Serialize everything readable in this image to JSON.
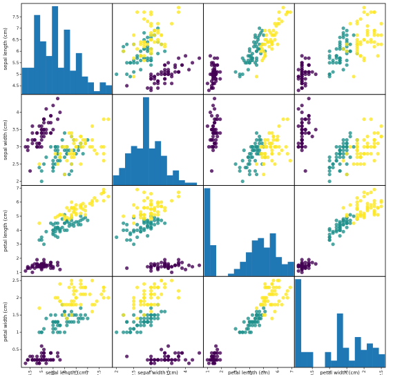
{
  "chart_data": {
    "type": "scatter_matrix",
    "variables": [
      "sepal length (cm)",
      "sepal width (cm)",
      "petal length (cm)",
      "petal width (cm)"
    ],
    "axis_ranges": [
      [
        4.3,
        7.9
      ],
      [
        2.0,
        4.4
      ],
      [
        1.0,
        6.9
      ],
      [
        0.1,
        2.5
      ]
    ],
    "ticks": [
      [
        4.5,
        5.0,
        5.5,
        6.0,
        6.5,
        7.0,
        7.5
      ],
      [
        2.0,
        2.5,
        3.0,
        3.5,
        4.0
      ],
      [
        1,
        2,
        3,
        4,
        5,
        6,
        7
      ],
      [
        0.5,
        1.0,
        1.5,
        2.0,
        2.5
      ]
    ],
    "diagonal_hist_counts": [
      [
        9,
        9,
        27,
        18,
        13,
        30,
        9,
        22,
        8,
        14,
        6,
        4,
        1,
        4,
        3
      ],
      [
        4,
        7,
        13,
        16,
        15,
        36,
        15,
        18,
        12,
        4,
        6,
        2,
        1,
        1,
        0
      ],
      [
        37,
        13,
        0,
        0,
        1,
        3,
        6,
        10,
        15,
        16,
        12,
        18,
        8,
        5,
        6
      ],
      [
        41,
        7,
        7,
        0,
        0,
        7,
        3,
        25,
        9,
        3,
        14,
        8,
        11,
        9,
        6
      ]
    ],
    "hist_bins": 15,
    "class_colors": [
      "#440154",
      "#21918c",
      "#fde725"
    ],
    "grid": false,
    "legend": "none",
    "samples": [
      [
        5.1,
        3.5,
        1.4,
        0.2,
        0
      ],
      [
        4.9,
        3.0,
        1.4,
        0.2,
        0
      ],
      [
        4.7,
        3.2,
        1.3,
        0.2,
        0
      ],
      [
        4.6,
        3.1,
        1.5,
        0.2,
        0
      ],
      [
        5.0,
        3.6,
        1.4,
        0.2,
        0
      ],
      [
        5.4,
        3.9,
        1.7,
        0.4,
        0
      ],
      [
        4.6,
        3.4,
        1.4,
        0.3,
        0
      ],
      [
        5.0,
        3.4,
        1.5,
        0.2,
        0
      ],
      [
        4.4,
        2.9,
        1.4,
        0.2,
        0
      ],
      [
        4.9,
        3.1,
        1.5,
        0.1,
        0
      ],
      [
        5.4,
        3.7,
        1.5,
        0.2,
        0
      ],
      [
        4.8,
        3.4,
        1.6,
        0.2,
        0
      ],
      [
        4.8,
        3.0,
        1.4,
        0.1,
        0
      ],
      [
        4.3,
        3.0,
        1.1,
        0.1,
        0
      ],
      [
        5.8,
        4.0,
        1.2,
        0.2,
        0
      ],
      [
        5.7,
        4.4,
        1.5,
        0.4,
        0
      ],
      [
        5.4,
        3.9,
        1.3,
        0.4,
        0
      ],
      [
        5.1,
        3.5,
        1.4,
        0.3,
        0
      ],
      [
        5.7,
        3.8,
        1.7,
        0.3,
        0
      ],
      [
        5.1,
        3.8,
        1.5,
        0.3,
        0
      ],
      [
        5.4,
        3.4,
        1.7,
        0.2,
        0
      ],
      [
        5.1,
        3.7,
        1.5,
        0.4,
        0
      ],
      [
        4.6,
        3.6,
        1.0,
        0.2,
        0
      ],
      [
        5.1,
        3.3,
        1.7,
        0.5,
        0
      ],
      [
        4.8,
        3.4,
        1.9,
        0.2,
        0
      ],
      [
        5.0,
        3.0,
        1.6,
        0.2,
        0
      ],
      [
        5.0,
        3.4,
        1.6,
        0.4,
        0
      ],
      [
        5.2,
        3.5,
        1.5,
        0.2,
        0
      ],
      [
        5.2,
        3.4,
        1.4,
        0.2,
        0
      ],
      [
        4.7,
        3.2,
        1.6,
        0.2,
        0
      ],
      [
        4.8,
        3.1,
        1.6,
        0.2,
        0
      ],
      [
        5.4,
        3.4,
        1.5,
        0.4,
        0
      ],
      [
        5.2,
        4.1,
        1.5,
        0.1,
        0
      ],
      [
        5.5,
        4.2,
        1.4,
        0.2,
        0
      ],
      [
        4.9,
        3.1,
        1.5,
        0.2,
        0
      ],
      [
        5.0,
        3.2,
        1.2,
        0.2,
        0
      ],
      [
        5.5,
        3.5,
        1.3,
        0.2,
        0
      ],
      [
        4.9,
        3.6,
        1.4,
        0.1,
        0
      ],
      [
        4.4,
        3.0,
        1.3,
        0.2,
        0
      ],
      [
        5.1,
        3.4,
        1.5,
        0.2,
        0
      ],
      [
        5.0,
        3.5,
        1.3,
        0.3,
        0
      ],
      [
        4.5,
        2.3,
        1.3,
        0.3,
        0
      ],
      [
        4.4,
        3.2,
        1.3,
        0.2,
        0
      ],
      [
        5.0,
        3.5,
        1.6,
        0.6,
        0
      ],
      [
        5.1,
        3.8,
        1.9,
        0.4,
        0
      ],
      [
        4.8,
        3.0,
        1.4,
        0.3,
        0
      ],
      [
        5.1,
        3.8,
        1.6,
        0.2,
        0
      ],
      [
        4.6,
        3.2,
        1.4,
        0.2,
        0
      ],
      [
        5.3,
        3.7,
        1.5,
        0.2,
        0
      ],
      [
        5.0,
        3.3,
        1.4,
        0.2,
        0
      ],
      [
        7.0,
        3.2,
        4.7,
        1.4,
        1
      ],
      [
        6.4,
        3.2,
        4.5,
        1.5,
        1
      ],
      [
        6.9,
        3.1,
        4.9,
        1.5,
        1
      ],
      [
        5.5,
        2.3,
        4.0,
        1.3,
        1
      ],
      [
        6.5,
        2.8,
        4.6,
        1.5,
        1
      ],
      [
        5.7,
        2.8,
        4.5,
        1.3,
        1
      ],
      [
        6.3,
        3.3,
        4.7,
        1.6,
        1
      ],
      [
        4.9,
        2.4,
        3.3,
        1.0,
        1
      ],
      [
        6.6,
        2.9,
        4.6,
        1.3,
        1
      ],
      [
        5.2,
        2.7,
        3.9,
        1.4,
        1
      ],
      [
        5.0,
        2.0,
        3.5,
        1.0,
        1
      ],
      [
        5.9,
        3.0,
        4.2,
        1.5,
        1
      ],
      [
        6.0,
        2.2,
        4.0,
        1.0,
        1
      ],
      [
        6.1,
        2.9,
        4.7,
        1.4,
        1
      ],
      [
        5.6,
        2.9,
        3.6,
        1.3,
        1
      ],
      [
        6.7,
        3.1,
        4.4,
        1.4,
        1
      ],
      [
        5.6,
        3.0,
        4.5,
        1.5,
        1
      ],
      [
        5.8,
        2.7,
        4.1,
        1.0,
        1
      ],
      [
        6.2,
        2.2,
        4.5,
        1.5,
        1
      ],
      [
        5.6,
        2.5,
        3.9,
        1.1,
        1
      ],
      [
        5.9,
        3.2,
        4.8,
        1.8,
        1
      ],
      [
        6.1,
        2.8,
        4.0,
        1.3,
        1
      ],
      [
        6.3,
        2.5,
        4.9,
        1.5,
        1
      ],
      [
        6.1,
        2.8,
        4.7,
        1.2,
        1
      ],
      [
        6.4,
        2.9,
        4.3,
        1.3,
        1
      ],
      [
        6.6,
        3.0,
        4.4,
        1.4,
        1
      ],
      [
        6.8,
        2.8,
        4.8,
        1.4,
        1
      ],
      [
        6.7,
        3.0,
        5.0,
        1.7,
        1
      ],
      [
        6.0,
        2.9,
        4.5,
        1.5,
        1
      ],
      [
        5.7,
        2.6,
        3.5,
        1.0,
        1
      ],
      [
        5.5,
        2.4,
        3.8,
        1.1,
        1
      ],
      [
        5.5,
        2.4,
        3.7,
        1.0,
        1
      ],
      [
        5.8,
        2.7,
        3.9,
        1.2,
        1
      ],
      [
        6.0,
        2.7,
        5.1,
        1.6,
        1
      ],
      [
        5.4,
        3.0,
        4.5,
        1.5,
        1
      ],
      [
        6.0,
        3.4,
        4.5,
        1.6,
        1
      ],
      [
        6.7,
        3.1,
        4.7,
        1.5,
        1
      ],
      [
        6.3,
        2.3,
        4.4,
        1.3,
        1
      ],
      [
        5.6,
        3.0,
        4.1,
        1.3,
        1
      ],
      [
        5.5,
        2.5,
        4.0,
        1.3,
        1
      ],
      [
        5.5,
        2.6,
        4.4,
        1.2,
        1
      ],
      [
        6.1,
        3.0,
        4.6,
        1.4,
        1
      ],
      [
        5.8,
        2.6,
        4.0,
        1.2,
        1
      ],
      [
        5.0,
        2.3,
        3.3,
        1.0,
        1
      ],
      [
        5.6,
        2.7,
        4.2,
        1.3,
        1
      ],
      [
        5.7,
        3.0,
        4.2,
        1.2,
        1
      ],
      [
        5.7,
        2.9,
        4.2,
        1.3,
        1
      ],
      [
        6.2,
        2.9,
        4.3,
        1.3,
        1
      ],
      [
        5.1,
        2.5,
        3.0,
        1.1,
        1
      ],
      [
        5.7,
        2.8,
        4.1,
        1.3,
        1
      ],
      [
        6.3,
        3.3,
        6.0,
        2.5,
        2
      ],
      [
        5.8,
        2.7,
        5.1,
        1.9,
        2
      ],
      [
        7.1,
        3.0,
        5.9,
        2.1,
        2
      ],
      [
        6.3,
        2.9,
        5.6,
        1.8,
        2
      ],
      [
        6.5,
        3.0,
        5.8,
        2.2,
        2
      ],
      [
        7.6,
        3.0,
        6.6,
        2.1,
        2
      ],
      [
        4.9,
        2.5,
        4.5,
        1.7,
        2
      ],
      [
        7.3,
        2.9,
        6.3,
        1.8,
        2
      ],
      [
        6.7,
        2.5,
        5.8,
        1.8,
        2
      ],
      [
        7.2,
        3.6,
        6.1,
        2.5,
        2
      ],
      [
        6.5,
        3.2,
        5.1,
        2.0,
        2
      ],
      [
        6.4,
        2.7,
        5.3,
        1.9,
        2
      ],
      [
        6.8,
        3.0,
        5.5,
        2.1,
        2
      ],
      [
        5.7,
        2.5,
        5.0,
        2.0,
        2
      ],
      [
        5.8,
        2.8,
        5.1,
        2.4,
        2
      ],
      [
        6.4,
        3.2,
        5.3,
        2.3,
        2
      ],
      [
        6.5,
        3.0,
        5.5,
        1.8,
        2
      ],
      [
        7.7,
        3.8,
        6.7,
        2.2,
        2
      ],
      [
        7.7,
        2.6,
        6.9,
        2.3,
        2
      ],
      [
        6.0,
        2.2,
        5.0,
        1.5,
        2
      ],
      [
        6.9,
        3.2,
        5.7,
        2.3,
        2
      ],
      [
        5.6,
        2.8,
        4.9,
        2.0,
        2
      ],
      [
        7.7,
        2.8,
        6.7,
        2.0,
        2
      ],
      [
        6.3,
        2.7,
        4.9,
        1.8,
        2
      ],
      [
        6.7,
        3.3,
        5.7,
        2.1,
        2
      ],
      [
        7.2,
        3.2,
        6.0,
        1.8,
        2
      ],
      [
        6.2,
        2.8,
        4.8,
        1.8,
        2
      ],
      [
        6.1,
        3.0,
        4.9,
        1.8,
        2
      ],
      [
        6.4,
        2.8,
        5.6,
        2.1,
        2
      ],
      [
        7.2,
        3.0,
        5.8,
        1.6,
        2
      ],
      [
        7.4,
        2.8,
        6.1,
        1.9,
        2
      ],
      [
        7.9,
        3.8,
        6.4,
        2.0,
        2
      ],
      [
        6.4,
        2.8,
        5.6,
        2.2,
        2
      ],
      [
        6.3,
        2.8,
        5.1,
        1.5,
        2
      ],
      [
        6.1,
        2.6,
        5.6,
        1.4,
        2
      ],
      [
        7.7,
        3.0,
        6.1,
        2.3,
        2
      ],
      [
        6.3,
        3.4,
        5.6,
        2.4,
        2
      ],
      [
        6.4,
        3.1,
        5.5,
        1.8,
        2
      ],
      [
        6.0,
        3.0,
        4.8,
        1.8,
        2
      ],
      [
        6.9,
        3.1,
        5.4,
        2.1,
        2
      ],
      [
        6.7,
        3.1,
        5.6,
        2.4,
        2
      ],
      [
        6.9,
        3.1,
        5.1,
        2.3,
        2
      ],
      [
        5.8,
        2.7,
        5.1,
        1.9,
        2
      ],
      [
        6.8,
        3.2,
        5.9,
        2.3,
        2
      ],
      [
        6.7,
        3.3,
        5.7,
        2.5,
        2
      ],
      [
        6.7,
        3.0,
        5.2,
        2.3,
        2
      ],
      [
        6.3,
        2.5,
        5.0,
        1.9,
        2
      ],
      [
        6.5,
        3.0,
        5.2,
        2.0,
        2
      ],
      [
        6.2,
        3.4,
        5.4,
        2.3,
        2
      ],
      [
        5.9,
        3.0,
        5.1,
        1.8,
        2
      ]
    ]
  }
}
